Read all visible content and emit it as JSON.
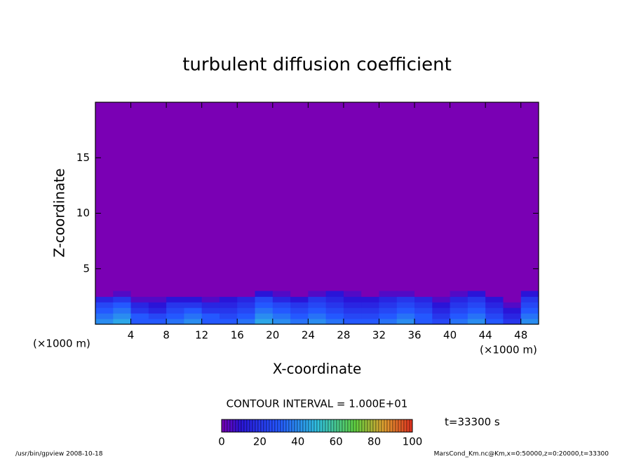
{
  "chart_data": {
    "type": "contour",
    "title": "turbulent diffusion coefficient",
    "xlabel": "X-coordinate",
    "ylabel": "Z-coordinate",
    "xunit": "(×1000 m)",
    "yunit": "(×1000 m)",
    "contour_interval": "CONTOUR INTERVAL = 1.000E+01",
    "time_label": "t=33300 s",
    "footer_left": "/usr/bin/gpview   2008-10-18",
    "footer_right": "MarsCond_Km.nc@Km,x=0:50000,z=0:20000,t=33300",
    "xlim": [
      0,
      50
    ],
    "ylim": [
      0,
      20
    ],
    "xticks": [
      4,
      8,
      12,
      16,
      20,
      24,
      28,
      32,
      36,
      40,
      44,
      48
    ],
    "yticks": [
      5,
      10,
      15
    ],
    "x": [
      1,
      3,
      5,
      7,
      9,
      11,
      13,
      15,
      17,
      19,
      21,
      23,
      25,
      27,
      29,
      31,
      33,
      35,
      37,
      39,
      41,
      43,
      45,
      47,
      49
    ],
    "z": [
      0.25,
      0.75,
      1.25,
      1.75,
      2.25,
      2.75
    ],
    "values": [
      [
        40,
        45,
        30,
        30,
        35,
        40,
        30,
        30,
        35,
        45,
        40,
        35,
        40,
        35,
        30,
        30,
        35,
        40,
        30,
        25,
        35,
        40,
        30,
        20,
        40
      ],
      [
        35,
        40,
        30,
        25,
        30,
        35,
        30,
        25,
        30,
        40,
        35,
        30,
        35,
        30,
        25,
        25,
        30,
        35,
        30,
        20,
        30,
        35,
        25,
        15,
        35
      ],
      [
        30,
        35,
        20,
        15,
        25,
        30,
        20,
        20,
        25,
        35,
        30,
        25,
        30,
        25,
        20,
        20,
        25,
        30,
        25,
        15,
        25,
        30,
        20,
        10,
        30
      ],
      [
        25,
        30,
        15,
        10,
        20,
        20,
        15,
        15,
        20,
        30,
        25,
        20,
        25,
        20,
        15,
        15,
        20,
        25,
        20,
        10,
        20,
        25,
        15,
        5,
        25
      ],
      [
        15,
        20,
        5,
        5,
        10,
        10,
        5,
        10,
        15,
        25,
        15,
        10,
        20,
        15,
        10,
        10,
        15,
        20,
        15,
        5,
        15,
        20,
        10,
        0,
        20
      ],
      [
        0,
        5,
        0,
        0,
        0,
        0,
        0,
        0,
        0,
        10,
        5,
        0,
        5,
        10,
        5,
        0,
        5,
        5,
        0,
        0,
        5,
        10,
        0,
        0,
        10
      ]
    ],
    "clim": [
      0,
      100
    ],
    "cticks": [
      0,
      20,
      40,
      60,
      80,
      100
    ],
    "colormap": [
      {
        "value": 0,
        "color": "#7a00b4"
      },
      {
        "value": 10,
        "color": "#2a14d8"
      },
      {
        "value": 30,
        "color": "#2458ff"
      },
      {
        "value": 50,
        "color": "#30c0e0"
      },
      {
        "value": 70,
        "color": "#60d040"
      },
      {
        "value": 85,
        "color": "#e0a030"
      },
      {
        "value": 100,
        "color": "#e03020"
      }
    ]
  }
}
